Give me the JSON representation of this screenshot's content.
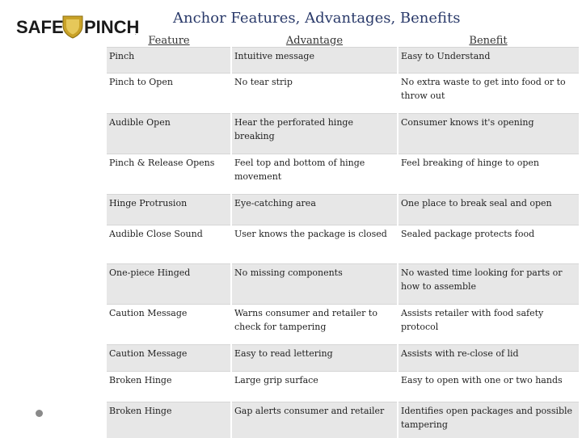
{
  "header": {
    "logo_text": "SAFEPINCH",
    "title": "Anchor Features, Advantages, Benefits"
  },
  "table": {
    "headers": [
      "Feature",
      "Advantage",
      "Benefit"
    ],
    "rows": [
      [
        "Pinch",
        "Intuitive message",
        "Easy to Understand"
      ],
      [
        "Pinch to Open",
        "No tear strip",
        "No extra waste to get into food or to throw out"
      ],
      [
        "Audible Open",
        "Hear the perforated hinge breaking",
        "Consumer knows it's opening"
      ],
      [
        "Pinch & Release Opens",
        "Feel top and bottom of hinge movement",
        "Feel breaking of hinge to open"
      ],
      [
        "Hinge Protrusion",
        "Eye-catching area",
        "One place to break seal and open"
      ],
      [
        "Audible Close Sound",
        "User knows the package is closed",
        "Sealed package protects food"
      ],
      [
        "One-piece Hinged",
        "No missing components",
        "No wasted time looking for parts or how to assemble"
      ],
      [
        "Caution Message",
        "Warns consumer and retailer to check for tampering",
        "Assists retailer with food safety protocol"
      ],
      [
        "Caution Message",
        "Easy to read lettering",
        "Assists with re-close of lid"
      ],
      [
        "Broken Hinge",
        "Large grip surface",
        "Easy to open with one or two hands"
      ],
      [
        "Broken Hinge",
        "Gap alerts consumer and retailer",
        "Identifies open packages and possible tampering"
      ]
    ]
  },
  "colors": {
    "title": "#2a3a6a",
    "logo_gold": "#c9a227",
    "row_shade": "#e7e7e7"
  }
}
